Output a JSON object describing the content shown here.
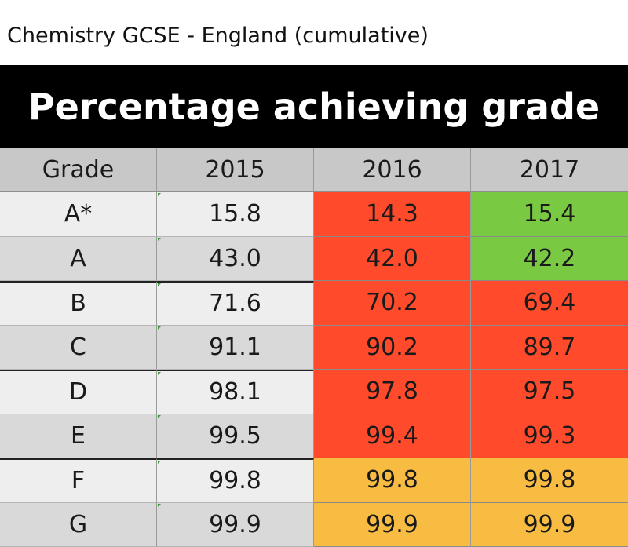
{
  "subtitle": "Chemistry GCSE - England (cumulative)",
  "banner_title": "Percentage achieving grade",
  "colors": {
    "decrease": "#ff4b2b",
    "increase": "#7ac943",
    "unchanged": "#f9bc43",
    "header_bg": "#c8c8c8",
    "banner_bg": "#000000"
  },
  "table": {
    "headers": [
      "Grade",
      "2015",
      "2016",
      "2017"
    ],
    "rows": [
      {
        "grade": "A*",
        "v2015": "15.8",
        "v2016": "14.3",
        "v2017": "15.4",
        "s2016": "decrease",
        "s2017": "increase"
      },
      {
        "grade": "A",
        "v2015": "43.0",
        "v2016": "42.0",
        "v2017": "42.2",
        "s2016": "decrease",
        "s2017": "increase"
      },
      {
        "grade": "B",
        "v2015": "71.6",
        "v2016": "70.2",
        "v2017": "69.4",
        "s2016": "decrease",
        "s2017": "decrease"
      },
      {
        "grade": "C",
        "v2015": "91.1",
        "v2016": "90.2",
        "v2017": "89.7",
        "s2016": "decrease",
        "s2017": "decrease"
      },
      {
        "grade": "D",
        "v2015": "98.1",
        "v2016": "97.8",
        "v2017": "97.5",
        "s2016": "decrease",
        "s2017": "decrease"
      },
      {
        "grade": "E",
        "v2015": "99.5",
        "v2016": "99.4",
        "v2017": "99.3",
        "s2016": "decrease",
        "s2017": "decrease"
      },
      {
        "grade": "F",
        "v2015": "99.8",
        "v2016": "99.8",
        "v2017": "99.8",
        "s2016": "unchanged",
        "s2017": "unchanged"
      },
      {
        "grade": "G",
        "v2015": "99.9",
        "v2016": "99.9",
        "v2017": "99.9",
        "s2016": "unchanged",
        "s2017": "unchanged"
      }
    ]
  }
}
